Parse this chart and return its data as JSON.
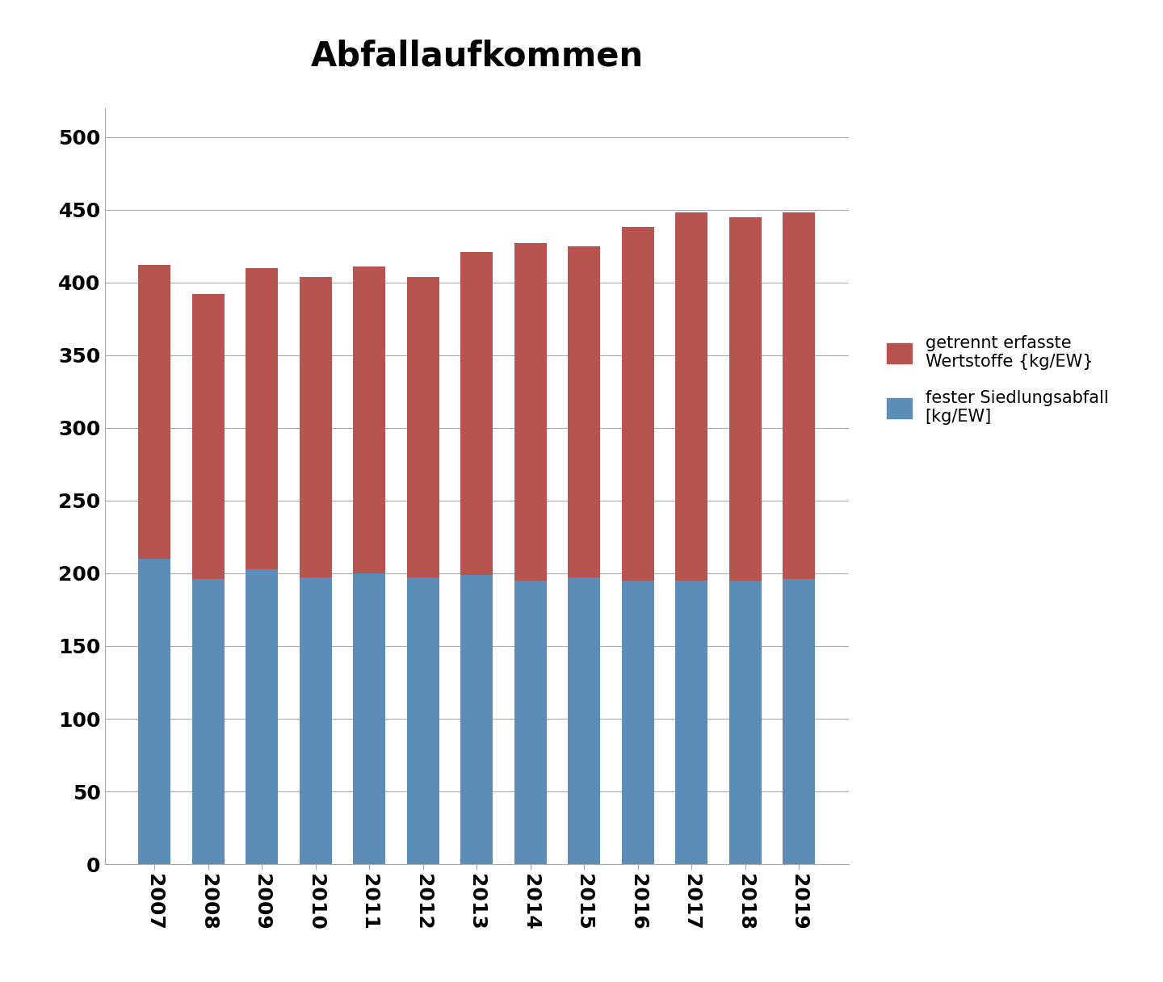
{
  "title": "Abfallaufkommen",
  "years": [
    "2007",
    "2008",
    "2009",
    "2010",
    "2011",
    "2012",
    "2013",
    "2014",
    "2015",
    "2016",
    "2017",
    "2018",
    "2019"
  ],
  "blue_values": [
    210,
    196,
    203,
    197,
    200,
    197,
    199,
    195,
    197,
    195,
    195,
    195,
    196
  ],
  "red_values": [
    202,
    196,
    207,
    207,
    211,
    207,
    222,
    232,
    228,
    243,
    253,
    250,
    252
  ],
  "blue_color": "#5B8DB8",
  "red_color": "#B85450",
  "ylim": [
    0,
    520
  ],
  "yticks": [
    0,
    50,
    100,
    150,
    200,
    250,
    300,
    350,
    400,
    450,
    500
  ],
  "legend_red": "getrennt erfasste\nWertstoffe {kg/EW}",
  "legend_blue": "fester Siedlungsabfall\n[kg/EW]",
  "title_fontsize": 30,
  "tick_fontsize": 18,
  "legend_fontsize": 15
}
